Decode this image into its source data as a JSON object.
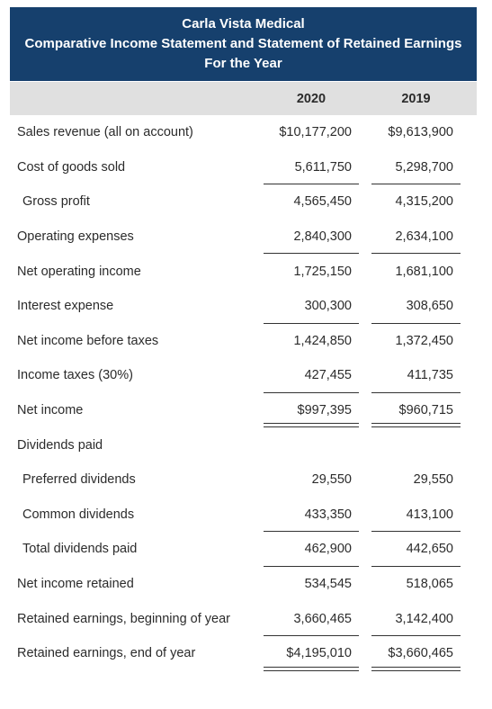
{
  "header": {
    "company": "Carla Vista Medical",
    "statement": "Comparative Income Statement and Statement of Retained Earnings",
    "period": "For the Year"
  },
  "columns": [
    "2020",
    "2019"
  ],
  "rows": [
    {
      "label": "Sales revenue (all on account)",
      "v2020": "$10,177,200",
      "v2019": "$9,613,900",
      "indent": false,
      "rule": "none"
    },
    {
      "label": "Cost of goods sold",
      "v2020": "5,611,750",
      "v2019": "5,298,700",
      "indent": false,
      "rule": "single"
    },
    {
      "label": "Gross profit",
      "v2020": "4,565,450",
      "v2019": "4,315,200",
      "indent": true,
      "rule": "none"
    },
    {
      "label": "Operating expenses",
      "v2020": "2,840,300",
      "v2019": "2,634,100",
      "indent": false,
      "rule": "single"
    },
    {
      "label": "Net operating income",
      "v2020": "1,725,150",
      "v2019": "1,681,100",
      "indent": false,
      "rule": "none"
    },
    {
      "label": "Interest expense",
      "v2020": "300,300",
      "v2019": "308,650",
      "indent": false,
      "rule": "single"
    },
    {
      "label": "Net income before taxes",
      "v2020": "1,424,850",
      "v2019": "1,372,450",
      "indent": false,
      "rule": "none"
    },
    {
      "label": "Income taxes (30%)",
      "v2020": "427,455",
      "v2019": "411,735",
      "indent": false,
      "rule": "single"
    },
    {
      "label": "Net income",
      "v2020": "$997,395",
      "v2019": "$960,715",
      "indent": false,
      "rule": "double"
    },
    {
      "label": "Dividends paid",
      "v2020": "",
      "v2019": "",
      "indent": false,
      "rule": "none"
    },
    {
      "label": "Preferred dividends",
      "v2020": "29,550",
      "v2019": "29,550",
      "indent": true,
      "rule": "none"
    },
    {
      "label": "Common dividends",
      "v2020": "433,350",
      "v2019": "413,100",
      "indent": true,
      "rule": "single"
    },
    {
      "label": "Total dividends paid",
      "v2020": "462,900",
      "v2019": "442,650",
      "indent": true,
      "rule": "single"
    },
    {
      "label": "Net income retained",
      "v2020": "534,545",
      "v2019": "518,065",
      "indent": false,
      "rule": "none"
    },
    {
      "label": "Retained earnings, beginning of year",
      "v2020": "3,660,465",
      "v2019": "3,142,400",
      "indent": false,
      "rule": "single"
    },
    {
      "label": "Retained earnings, end of year",
      "v2020": "$4,195,010",
      "v2019": "$3,660,465",
      "indent": false,
      "rule": "double"
    }
  ]
}
